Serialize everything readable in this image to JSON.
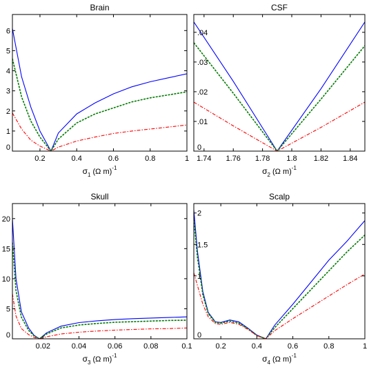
{
  "figure": {
    "colors": {
      "blue": "#0000ff",
      "green": "#007a00",
      "red": "#ff0000",
      "frame": "#000000"
    },
    "line_styles": [
      "solid",
      "dashed-dotted",
      "dash-dot"
    ]
  },
  "chart_data": [
    {
      "type": "line",
      "title": "Brain",
      "xlabel": "σ1 (Ω m)-1",
      "xlabel_parts": {
        "sym": "σ",
        "sub": "1",
        "mid": " (Ω  m)",
        "sup": "-1"
      },
      "xlim": [
        0.05,
        1.0
      ],
      "ylim": [
        0,
        6.8
      ],
      "xticks": [
        0.2,
        0.4,
        0.6,
        0.8,
        1.0
      ],
      "xtick_labels": [
        "0.2",
        "0.4",
        "0.6",
        "0.8",
        "1"
      ],
      "yticks": [
        0,
        1,
        2,
        3,
        4,
        5,
        6
      ],
      "ytick_labels": [
        "0",
        "1",
        "2",
        "3",
        "4",
        "5",
        "6"
      ],
      "ytick_side": "outside",
      "grid": false,
      "minimum_x": 0.26,
      "series": [
        {
          "color": "#0000ff",
          "style": "solid",
          "x": [
            0.05,
            0.1,
            0.15,
            0.2,
            0.26,
            0.3,
            0.4,
            0.5,
            0.6,
            0.7,
            0.8,
            0.9,
            1.0
          ],
          "y": [
            6.1,
            3.7,
            2.2,
            1.0,
            0.0,
            0.9,
            1.85,
            2.4,
            2.85,
            3.2,
            3.45,
            3.65,
            3.85
          ]
        },
        {
          "color": "#007a00",
          "style": "dashed-dotted",
          "x": [
            0.05,
            0.1,
            0.15,
            0.2,
            0.26,
            0.3,
            0.4,
            0.5,
            0.6,
            0.7,
            0.8,
            0.9,
            1.0
          ],
          "y": [
            4.6,
            2.7,
            1.5,
            0.7,
            0.0,
            0.6,
            1.4,
            1.85,
            2.15,
            2.45,
            2.65,
            2.8,
            2.95
          ]
        },
        {
          "color": "#ff0000",
          "style": "dash-dot",
          "x": [
            0.05,
            0.1,
            0.15,
            0.2,
            0.26,
            0.3,
            0.4,
            0.5,
            0.6,
            0.7,
            0.8,
            0.9,
            1.0
          ],
          "y": [
            1.9,
            1.1,
            0.55,
            0.25,
            0.0,
            0.2,
            0.5,
            0.7,
            0.88,
            1.0,
            1.1,
            1.2,
            1.3
          ]
        }
      ]
    },
    {
      "type": "line",
      "title": "CSF",
      "xlabel": "σ2 (Ω m)-1",
      "xlabel_parts": {
        "sym": "σ",
        "sub": "2",
        "mid": " (Ω  m)",
        "sup": "-1"
      },
      "xlim": [
        1.733,
        1.85
      ],
      "ylim": [
        0,
        0.046
      ],
      "xticks": [
        1.74,
        1.76,
        1.78,
        1.8,
        1.82,
        1.84
      ],
      "xtick_labels": [
        "1.74",
        "1.76",
        "1.78",
        "1.8",
        "1.82",
        "1.84"
      ],
      "yticks": [
        0,
        0.01,
        0.02,
        0.03,
        0.04
      ],
      "ytick_labels": [
        "0",
        ".01",
        ".02",
        ".03",
        ".04"
      ],
      "ytick_side": "inside",
      "grid": false,
      "minimum_x": 1.79,
      "series": [
        {
          "color": "#0000ff",
          "style": "solid",
          "x": [
            1.733,
            1.76,
            1.79,
            1.82,
            1.85
          ],
          "y": [
            0.0435,
            0.0235,
            0.0,
            0.021,
            0.0435
          ]
        },
        {
          "color": "#007a00",
          "style": "dashed-dotted",
          "x": [
            1.733,
            1.76,
            1.79,
            1.82,
            1.85
          ],
          "y": [
            0.0365,
            0.0195,
            0.0,
            0.0175,
            0.0355
          ]
        },
        {
          "color": "#ff0000",
          "style": "dash-dot",
          "x": [
            1.733,
            1.76,
            1.79,
            1.82,
            1.85
          ],
          "y": [
            0.0165,
            0.0085,
            0.0,
            0.008,
            0.0165
          ]
        }
      ]
    },
    {
      "type": "line",
      "title": "Skull",
      "xlabel": "σ3 (Ω m)-1",
      "xlabel_parts": {
        "sym": "σ",
        "sub": "3",
        "mid": " (Ω  m)",
        "sup": "-1"
      },
      "xlim": [
        0.003,
        0.1
      ],
      "ylim": [
        0,
        22.5
      ],
      "xticks": [
        0.02,
        0.04,
        0.06,
        0.08,
        0.1
      ],
      "xtick_labels": [
        "0.02",
        "0.04",
        "0.06",
        "0.08",
        "0.1"
      ],
      "yticks": [
        0,
        5,
        10,
        15,
        20
      ],
      "ytick_labels": [
        "0",
        "5",
        "10",
        "15",
        "20"
      ],
      "ytick_side": "outside",
      "grid": false,
      "minimum_x": 0.018,
      "series": [
        {
          "color": "#0000ff",
          "style": "solid",
          "x": [
            0.003,
            0.005,
            0.008,
            0.012,
            0.015,
            0.018,
            0.022,
            0.03,
            0.04,
            0.05,
            0.06,
            0.07,
            0.08,
            0.09,
            0.1
          ],
          "y": [
            20.0,
            10.0,
            4.5,
            1.8,
            0.6,
            0.0,
            1.0,
            2.1,
            2.7,
            3.0,
            3.2,
            3.35,
            3.45,
            3.55,
            3.65
          ]
        },
        {
          "color": "#007a00",
          "style": "dashed-dotted",
          "x": [
            0.003,
            0.005,
            0.008,
            0.012,
            0.015,
            0.018,
            0.022,
            0.03,
            0.04,
            0.05,
            0.06,
            0.07,
            0.08,
            0.09,
            0.1
          ],
          "y": [
            16.0,
            8.0,
            3.6,
            1.4,
            0.5,
            0.0,
            0.8,
            1.8,
            2.3,
            2.55,
            2.75,
            2.85,
            2.95,
            3.05,
            3.1
          ]
        },
        {
          "color": "#ff0000",
          "style": "dash-dot",
          "x": [
            0.003,
            0.005,
            0.008,
            0.012,
            0.015,
            0.018,
            0.022,
            0.03,
            0.04,
            0.05,
            0.06,
            0.07,
            0.08,
            0.09,
            0.1
          ],
          "y": [
            7.5,
            3.8,
            1.7,
            0.7,
            0.25,
            0.0,
            0.35,
            0.8,
            1.1,
            1.3,
            1.45,
            1.55,
            1.65,
            1.7,
            1.8
          ]
        }
      ]
    },
    {
      "type": "line",
      "title": "Scalp",
      "xlabel": "σ4 (Ω m)-1",
      "xlabel_parts": {
        "sym": "σ",
        "sub": "4",
        "mid": " (Ω  m)",
        "sup": "-1"
      },
      "xlim": [
        0.05,
        1.0
      ],
      "ylim": [
        0,
        2.15
      ],
      "xticks": [
        0.2,
        0.4,
        0.6,
        0.8,
        1.0
      ],
      "xtick_labels": [
        "0.2",
        "0.4",
        "0.6",
        "0.8",
        "1"
      ],
      "yticks": [
        0,
        1,
        1.5,
        2
      ],
      "ytick_labels": [
        "0",
        "1",
        "1.5",
        "2"
      ],
      "ytick_side": "inside",
      "grid": false,
      "minimum_x": 0.45,
      "series": [
        {
          "color": "#0000ff",
          "style": "solid",
          "x": [
            0.05,
            0.07,
            0.1,
            0.13,
            0.17,
            0.2,
            0.25,
            0.3,
            0.35,
            0.4,
            0.45,
            0.5,
            0.6,
            0.7,
            0.8,
            0.9,
            1.0
          ],
          "y": [
            2.05,
            1.4,
            0.75,
            0.42,
            0.27,
            0.26,
            0.3,
            0.27,
            0.17,
            0.06,
            0.0,
            0.22,
            0.55,
            0.9,
            1.25,
            1.55,
            1.88
          ]
        },
        {
          "color": "#007a00",
          "style": "dashed-dotted",
          "x": [
            0.05,
            0.07,
            0.1,
            0.13,
            0.17,
            0.2,
            0.25,
            0.3,
            0.35,
            0.4,
            0.45,
            0.5,
            0.6,
            0.7,
            0.8,
            0.9,
            1.0
          ],
          "y": [
            1.9,
            1.3,
            0.7,
            0.4,
            0.26,
            0.25,
            0.28,
            0.25,
            0.16,
            0.05,
            0.0,
            0.18,
            0.48,
            0.78,
            1.08,
            1.38,
            1.65
          ]
        },
        {
          "color": "#ff0000",
          "style": "dash-dot",
          "x": [
            0.05,
            0.07,
            0.1,
            0.13,
            0.17,
            0.2,
            0.25,
            0.3,
            0.35,
            0.4,
            0.45,
            0.5,
            0.6,
            0.7,
            0.8,
            0.9,
            1.0
          ],
          "y": [
            1.05,
            0.85,
            0.55,
            0.35,
            0.24,
            0.23,
            0.26,
            0.23,
            0.15,
            0.05,
            0.0,
            0.13,
            0.32,
            0.5,
            0.68,
            0.86,
            1.03
          ]
        }
      ]
    }
  ]
}
